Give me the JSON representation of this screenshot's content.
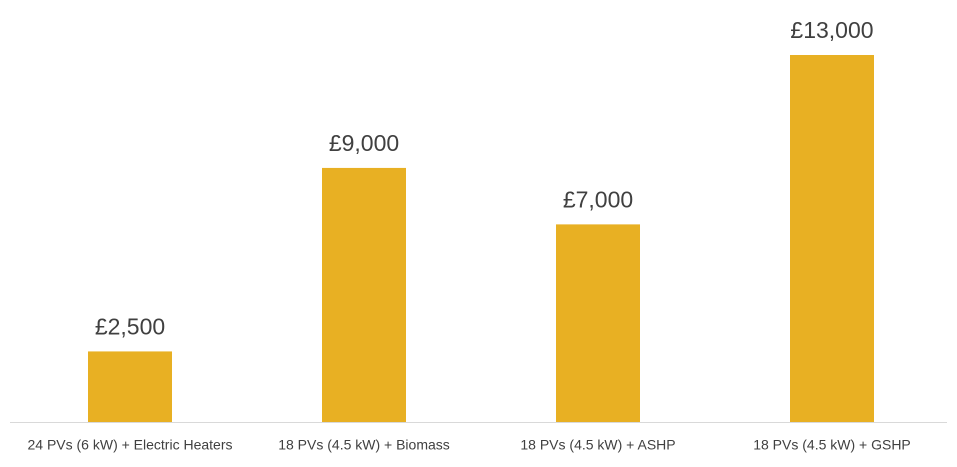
{
  "chart_data": {
    "type": "bar",
    "categories": [
      "24 PVs (6 kW) + Electric Heaters",
      "18 PVs (4.5 kW) + Biomass",
      "18 PVs (4.5 kW) + ASHP",
      "18 PVs (4.5 kW) + GSHP"
    ],
    "values": [
      2500,
      9000,
      7000,
      13000
    ],
    "value_labels": [
      "£2,500",
      "£9,000",
      "£7,000",
      "£13,000"
    ],
    "color": "#e8b023"
  }
}
